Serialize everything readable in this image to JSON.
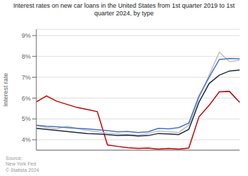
{
  "chart_data": {
    "type": "line",
    "title": "Interest rates on new car loans in the United States from 1st quarter 2019 to 1st\nquarter 2024, by type",
    "ylabel": "Interest rate",
    "source": "Source:\nNew York Fed\n© Statista 2024",
    "ylim": [
      3.5,
      9.3
    ],
    "yticks": [
      {
        "value": 4.0,
        "label": "4%"
      },
      {
        "value": 5.0,
        "label": "5%"
      },
      {
        "value": 6.0,
        "label": "6%"
      },
      {
        "value": 7.0,
        "label": "7%"
      },
      {
        "value": 8.0,
        "label": "8%"
      },
      {
        "value": 9.0,
        "label": "9%"
      }
    ],
    "grid": true,
    "tick_labels": "y",
    "series": [
      {
        "color": "#c00000",
        "values": [
          5.82,
          6.1,
          5.85,
          5.7,
          5.55,
          5.45,
          5.35,
          3.75,
          3.68,
          3.62,
          3.58,
          3.6,
          3.55,
          3.58,
          3.55,
          3.6,
          5.1,
          5.65,
          6.3,
          6.32,
          5.8
        ]
      },
      {
        "color": "#bfbfbf",
        "values": [
          4.68,
          4.58,
          4.52,
          4.65,
          4.55,
          4.45,
          4.38,
          4.32,
          4.28,
          4.25,
          4.22,
          4.3,
          4.42,
          4.38,
          4.35,
          4.7,
          6.0,
          7.1,
          8.2,
          7.75,
          7.82
        ]
      },
      {
        "color": "#4472c4",
        "values": [
          4.7,
          4.65,
          4.62,
          4.58,
          4.55,
          4.52,
          4.48,
          4.44,
          4.38,
          4.4,
          4.35,
          4.38,
          4.55,
          4.52,
          4.58,
          4.8,
          6.1,
          7.0,
          7.85,
          7.9,
          7.88
        ]
      },
      {
        "color": "#1c2a40",
        "values": [
          4.55,
          4.5,
          4.45,
          4.4,
          4.35,
          4.3,
          4.28,
          4.25,
          4.2,
          4.22,
          4.18,
          4.2,
          4.3,
          4.28,
          4.25,
          4.5,
          5.8,
          6.7,
          7.1,
          7.3,
          7.35
        ]
      }
    ]
  }
}
